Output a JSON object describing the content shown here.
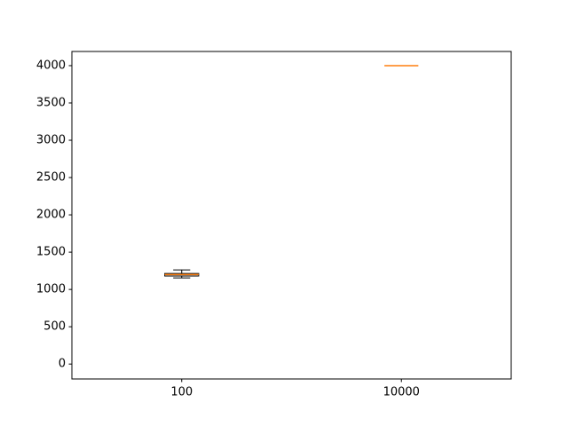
{
  "chart_data": {
    "type": "box",
    "categories": [
      "100",
      "10000"
    ],
    "boxes": [
      {
        "whislo": 1155,
        "q1": 1180,
        "med": 1200,
        "q3": 1214,
        "whishi": 1262
      },
      {
        "whislo": 4000,
        "q1": 4000,
        "med": 4000,
        "q3": 4000,
        "whishi": 4000
      }
    ],
    "box_color": "#000000",
    "median_color": "#ff7f0e",
    "ylim": [
      -200,
      4190
    ],
    "yticks": [
      0,
      500,
      1000,
      1500,
      2000,
      2500,
      3000,
      3500,
      4000
    ],
    "grid": false
  }
}
